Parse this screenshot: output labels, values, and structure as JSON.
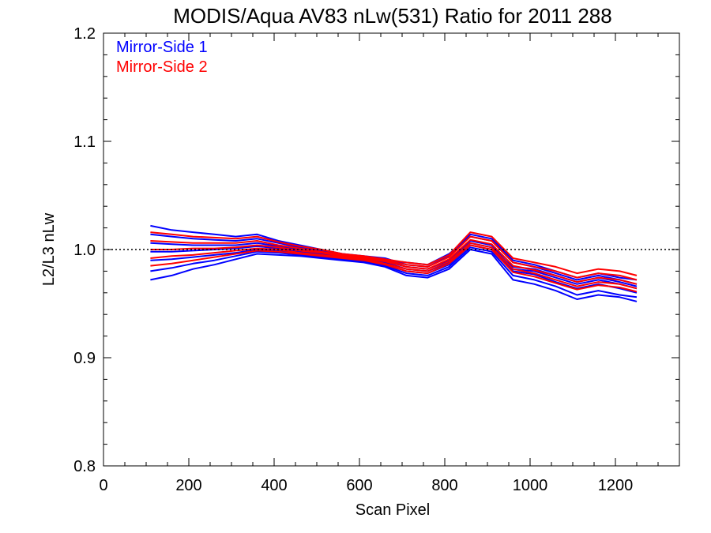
{
  "chart_data": {
    "type": "line",
    "title": "MODIS/Aqua AV83 nLw(531) Ratio for 2011 288",
    "xlabel": "Scan Pixel",
    "ylabel": "L2/L3 nLw",
    "xlim": [
      0,
      1350
    ],
    "ylim": [
      0.8,
      1.2
    ],
    "xticks": [
      0,
      200,
      400,
      600,
      800,
      1000,
      1200
    ],
    "xtick_labels": [
      "0",
      "200",
      "400",
      "600",
      "800",
      "1000",
      "1200"
    ],
    "yticks": [
      0.8,
      0.9,
      1.0,
      1.1,
      1.2
    ],
    "ytick_labels": [
      "0.8",
      "0.9",
      "1.0",
      "1.1",
      "1.2"
    ],
    "reference_line": {
      "y": 1.0,
      "style": "dotted"
    },
    "legend_position": "top-left",
    "colors": {
      "mirror_side_1": "#0000ff",
      "mirror_side_2": "#ff0000"
    },
    "x": [
      110,
      160,
      210,
      260,
      310,
      360,
      410,
      460,
      510,
      560,
      610,
      660,
      710,
      760,
      810,
      860,
      910,
      960,
      1010,
      1060,
      1110,
      1160,
      1210,
      1250
    ],
    "series": [
      {
        "name": "Mirror-Side 1",
        "color": "#0000ff",
        "lines": [
          [
            1.022,
            1.018,
            1.016,
            1.014,
            1.012,
            1.014,
            1.008,
            1.004,
            1.0,
            0.996,
            0.994,
            0.992,
            0.986,
            0.984,
            0.994,
            1.014,
            1.01,
            0.99,
            0.986,
            0.98,
            0.974,
            0.978,
            0.974,
            0.972
          ],
          [
            1.014,
            1.012,
            1.01,
            1.009,
            1.008,
            1.01,
            1.006,
            1.002,
            0.999,
            0.995,
            0.993,
            0.99,
            0.988,
            0.986,
            0.996,
            1.012,
            1.008,
            0.988,
            0.984,
            0.978,
            0.972,
            0.976,
            0.972,
            0.968
          ],
          [
            1.006,
            1.005,
            1.004,
            1.004,
            1.004,
            1.006,
            1.003,
            1.0,
            0.997,
            0.994,
            0.992,
            0.99,
            0.984,
            0.982,
            0.99,
            1.008,
            1.004,
            0.982,
            0.98,
            0.974,
            0.968,
            0.972,
            0.968,
            0.964
          ],
          [
            0.998,
            0.998,
            0.999,
            1.0,
            1.001,
            1.003,
            1.001,
            0.998,
            0.996,
            0.993,
            0.991,
            0.988,
            0.982,
            0.98,
            0.988,
            1.006,
            1.002,
            0.98,
            0.977,
            0.97,
            0.964,
            0.968,
            0.964,
            0.96
          ],
          [
            0.99,
            0.991,
            0.993,
            0.995,
            0.997,
            1.0,
            0.999,
            0.996,
            0.994,
            0.992,
            0.99,
            0.986,
            0.98,
            0.978,
            0.986,
            1.004,
            1.0,
            0.984,
            0.982,
            0.976,
            0.97,
            0.974,
            0.97,
            0.966
          ],
          [
            0.98,
            0.983,
            0.987,
            0.99,
            0.994,
            0.998,
            0.997,
            0.995,
            0.993,
            0.991,
            0.989,
            0.985,
            0.978,
            0.976,
            0.984,
            1.002,
            0.998,
            0.976,
            0.972,
            0.966,
            0.958,
            0.962,
            0.958,
            0.956
          ],
          [
            0.972,
            0.976,
            0.982,
            0.986,
            0.991,
            0.996,
            0.995,
            0.994,
            0.992,
            0.99,
            0.988,
            0.984,
            0.976,
            0.974,
            0.982,
            1.0,
            0.996,
            0.972,
            0.968,
            0.962,
            0.954,
            0.958,
            0.956,
            0.952
          ]
        ]
      },
      {
        "name": "Mirror-Side 2",
        "color": "#ff0000",
        "lines": [
          [
            1.016,
            1.014,
            1.012,
            1.011,
            1.01,
            1.012,
            1.007,
            1.003,
            1.0,
            0.996,
            0.994,
            0.991,
            0.988,
            0.986,
            0.995,
            1.016,
            1.012,
            0.992,
            0.988,
            0.984,
            0.978,
            0.982,
            0.98,
            0.976
          ],
          [
            1.008,
            1.007,
            1.006,
            1.006,
            1.006,
            1.008,
            1.004,
            1.001,
            0.998,
            0.995,
            0.993,
            0.99,
            0.986,
            0.984,
            0.993,
            1.012,
            1.008,
            0.988,
            0.984,
            0.98,
            0.974,
            0.978,
            0.976,
            0.972
          ],
          [
            1.0,
            1.0,
            1.001,
            1.001,
            1.002,
            1.004,
            1.002,
            0.999,
            0.997,
            0.994,
            0.992,
            0.989,
            0.984,
            0.982,
            0.991,
            1.009,
            1.005,
            0.985,
            0.981,
            0.976,
            0.97,
            0.974,
            0.972,
            0.968
          ],
          [
            0.992,
            0.994,
            0.995,
            0.997,
            0.999,
            1.001,
            1.0,
            0.997,
            0.995,
            0.993,
            0.991,
            0.987,
            0.982,
            0.98,
            0.989,
            1.006,
            1.002,
            0.982,
            0.978,
            0.972,
            0.966,
            0.97,
            0.968,
            0.964
          ],
          [
            0.985,
            0.987,
            0.99,
            0.993,
            0.996,
            0.999,
            0.998,
            0.996,
            0.994,
            0.992,
            0.99,
            0.986,
            0.98,
            0.978,
            0.987,
            1.004,
            1.0,
            0.979,
            0.975,
            0.969,
            0.963,
            0.967,
            0.965,
            0.961
          ]
        ]
      }
    ]
  }
}
